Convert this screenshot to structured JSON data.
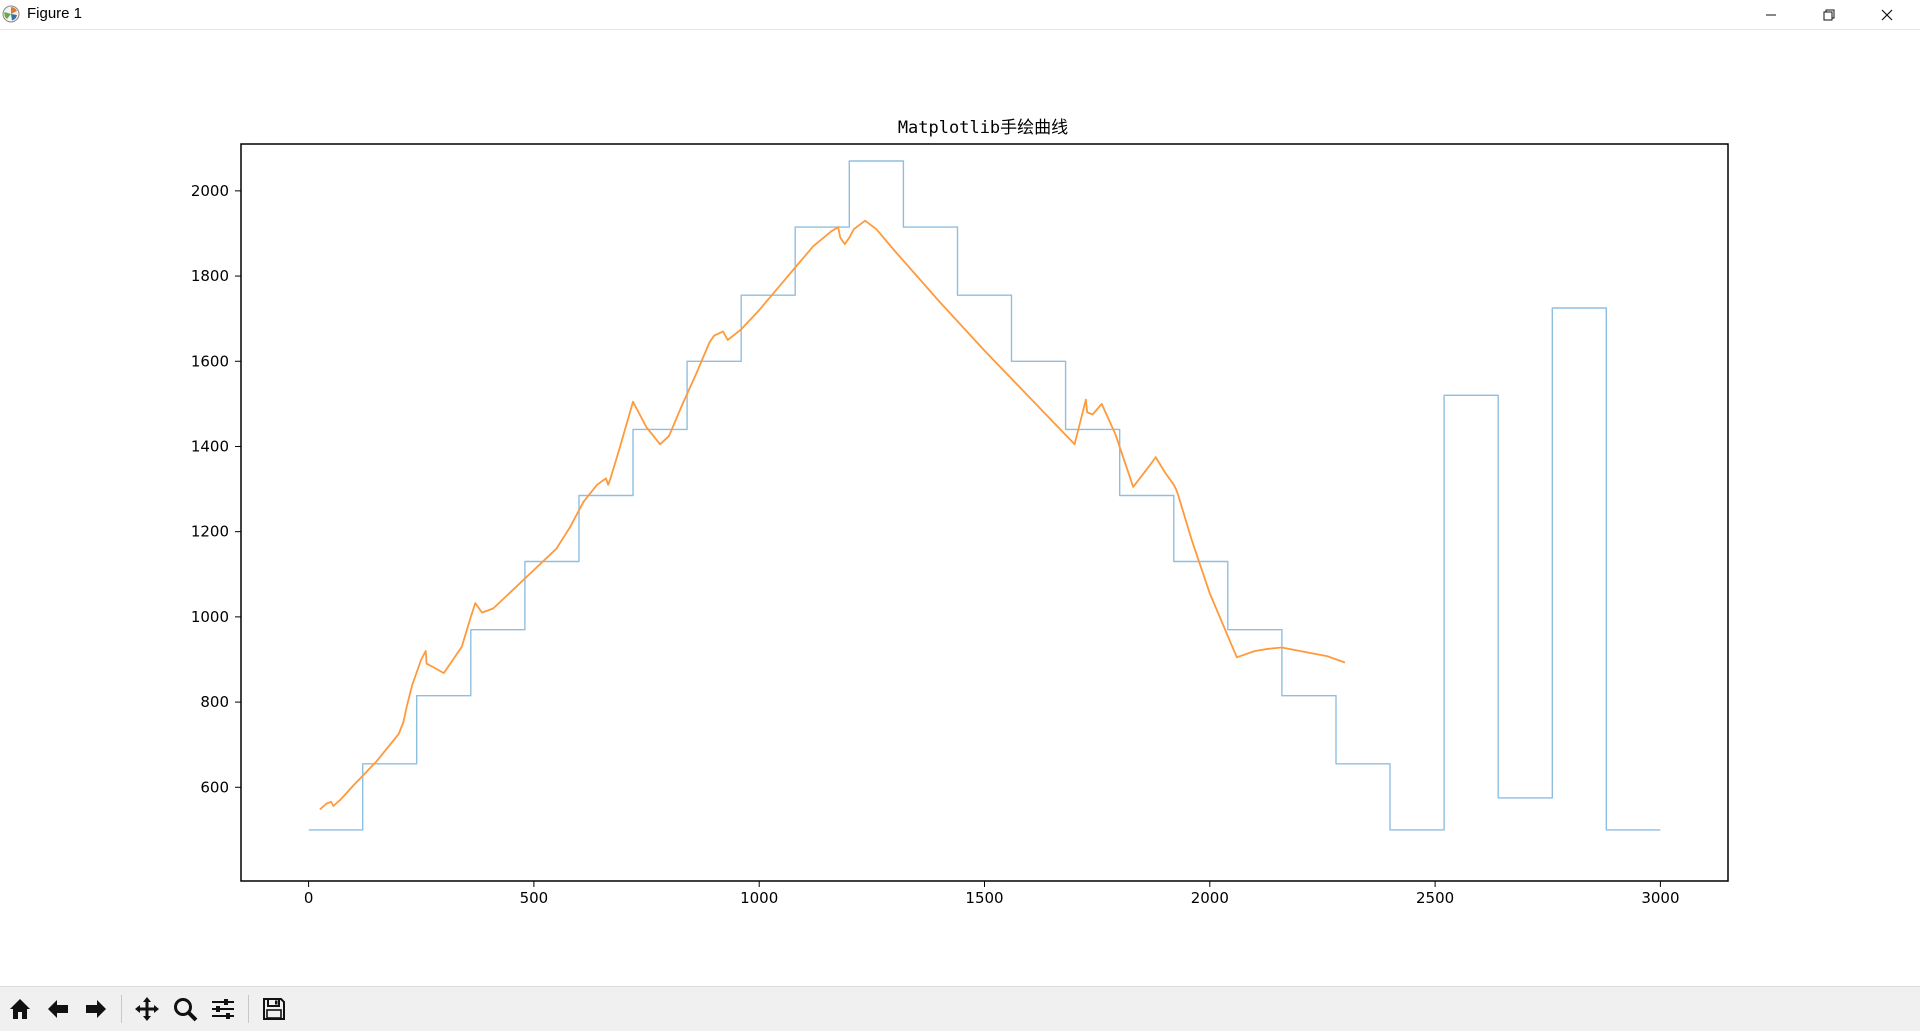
{
  "window": {
    "title": "Figure 1",
    "controls": [
      "minimize",
      "restore",
      "close"
    ]
  },
  "toolbar": {
    "buttons": [
      "home-icon",
      "back-icon",
      "forward-icon",
      "pan-icon",
      "zoom-icon",
      "configure-subplots-icon",
      "save-icon"
    ]
  },
  "chart_data": {
    "type": "line",
    "title": "Matplotlib手绘曲线",
    "xlabel": "",
    "ylabel": "",
    "xlim": [
      -150,
      3150
    ],
    "ylim": [
      380,
      2110
    ],
    "xticks": [
      0,
      500,
      1000,
      1500,
      2000,
      2500,
      3000
    ],
    "yticks": [
      600,
      800,
      1000,
      1200,
      1400,
      1600,
      1800,
      2000
    ],
    "grid": false,
    "legend": "none",
    "series": [
      {
        "color": "#8fbfe0",
        "step": true,
        "x": [
          0,
          120,
          120,
          240,
          240,
          360,
          360,
          480,
          480,
          600,
          600,
          720,
          720,
          840,
          840,
          960,
          960,
          1080,
          1080,
          1200,
          1200,
          1320,
          1320,
          1440,
          1440,
          1560,
          1560,
          1680,
          1680,
          1800,
          1800,
          1920,
          1920,
          2040,
          2040,
          2160,
          2160,
          2280,
          2280,
          2400,
          2400,
          2520,
          2520,
          2640,
          2640,
          2760,
          2760,
          2880,
          2880,
          3000
        ],
        "y": [
          500,
          500,
          655,
          655,
          815,
          815,
          970,
          970,
          1130,
          1130,
          1285,
          1285,
          1440,
          1440,
          1600,
          1600,
          1755,
          1755,
          1915,
          1915,
          2070,
          2070,
          1915,
          1915,
          1755,
          1755,
          1600,
          1600,
          1440,
          1440,
          1285,
          1285,
          1130,
          1130,
          970,
          970,
          815,
          815,
          655,
          655,
          500,
          500,
          1520,
          1520,
          575,
          575,
          1725,
          1725,
          500,
          500
        ]
      },
      {
        "color": "#ff9a3c",
        "step": false,
        "x": [
          25,
          40,
          50,
          55,
          70,
          100,
          150,
          200,
          210,
          212,
          218,
          230,
          250,
          260,
          262,
          280,
          300,
          340,
          360,
          370,
          385,
          410,
          450,
          500,
          550,
          580,
          610,
          640,
          660,
          665,
          670,
          690,
          720,
          750,
          780,
          800,
          830,
          860,
          890,
          900,
          920,
          930,
          960,
          1000,
          1040,
          1080,
          1120,
          1160,
          1175,
          1180,
          1190,
          1200,
          1210,
          1235,
          1260,
          1300,
          1400,
          1500,
          1600,
          1700,
          1725,
          1728,
          1740,
          1760,
          1790,
          1830,
          1870,
          1880,
          1900,
          1920,
          1925,
          1930,
          1960,
          2000,
          2060,
          2100,
          2130,
          2160,
          2200,
          2260,
          2300
        ],
        "y": [
          548,
          562,
          566,
          556,
          570,
          605,
          660,
          725,
          752,
          760,
          790,
          840,
          900,
          920,
          890,
          880,
          868,
          930,
          1000,
          1032,
          1010,
          1020,
          1060,
          1110,
          1160,
          1210,
          1270,
          1310,
          1325,
          1310,
          1325,
          1395,
          1505,
          1445,
          1405,
          1425,
          1500,
          1570,
          1645,
          1660,
          1670,
          1650,
          1675,
          1720,
          1770,
          1820,
          1870,
          1905,
          1915,
          1890,
          1875,
          1890,
          1910,
          1930,
          1910,
          1860,
          1740,
          1625,
          1515,
          1405,
          1510,
          1480,
          1475,
          1500,
          1430,
          1305,
          1360,
          1375,
          1340,
          1310,
          1300,
          1285,
          1180,
          1055,
          905,
          920,
          925,
          928,
          920,
          908,
          893
        ]
      }
    ]
  }
}
